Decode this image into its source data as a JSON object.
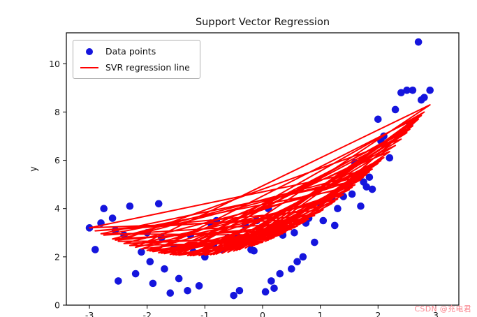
{
  "title": "Support Vector Regression",
  "watermark": {
    "text": "CSDN @充电君"
  },
  "colors": {
    "points": "#1515dd",
    "regression_line": "#ff0000",
    "axes": "#000000",
    "tick_text": "#1a1a1a",
    "watermark": "#fa7d87"
  },
  "chart_data": {
    "type": "scatter",
    "title": "Support Vector Regression",
    "xlabel": "",
    "ylabel": "y",
    "xlim": [
      -3.4,
      3.4
    ],
    "ylim": [
      0,
      11.28
    ],
    "x_ticks": [
      -3,
      -2,
      -1,
      0,
      1,
      2,
      3
    ],
    "y_ticks": [
      0,
      2,
      4,
      6,
      8,
      10
    ],
    "grid": false,
    "legend_position": "upper left",
    "x_tick_labels_partially_visible": true,
    "legend": [
      {
        "label": "Data points",
        "marker": "circle",
        "color": "#1515dd"
      },
      {
        "label": "SVR regression line",
        "marker": "line",
        "color": "#ff0000"
      }
    ],
    "points": [
      [
        0.1,
        4.0
      ],
      [
        -2.5,
        1.0
      ],
      [
        2.4,
        8.8
      ],
      [
        -0.9,
        3.4
      ],
      [
        1.5,
        5.0
      ],
      [
        -1.8,
        4.2
      ],
      [
        0.55,
        3.0
      ],
      [
        2.7,
        10.9
      ],
      [
        -0.5,
        0.4
      ],
      [
        1.9,
        4.8
      ],
      [
        -3.0,
        3.2
      ],
      [
        0.8,
        3.6
      ],
      [
        -1.3,
        0.6
      ],
      [
        2.0,
        7.7
      ],
      [
        -0.2,
        2.3
      ],
      [
        1.2,
        4.4
      ],
      [
        -2.2,
        1.3
      ],
      [
        2.9,
        8.9
      ],
      [
        -1.0,
        2.0
      ],
      [
        0.3,
        1.3
      ],
      [
        -2.8,
        3.4
      ],
      [
        1.7,
        4.1
      ],
      [
        -0.7,
        2.3
      ],
      [
        2.55,
        7.5
      ],
      [
        -1.6,
        0.5
      ],
      [
        0.9,
        2.6
      ],
      [
        -2.9,
        2.3
      ],
      [
        1.05,
        3.5
      ],
      [
        -0.1,
        3.5
      ],
      [
        2.2,
        6.1
      ],
      [
        -1.95,
        1.8
      ],
      [
        0.5,
        1.5
      ],
      [
        -2.6,
        3.6
      ],
      [
        1.85,
        5.3
      ],
      [
        -0.4,
        0.6
      ],
      [
        2.6,
        8.9
      ],
      [
        -1.45,
        1.1
      ],
      [
        0.0,
        2.9
      ],
      [
        -2.3,
        4.1
      ],
      [
        1.3,
        4.0
      ],
      [
        -0.85,
        2.5
      ],
      [
        2.3,
        8.1
      ],
      [
        -1.7,
        1.5
      ],
      [
        0.7,
        2.0
      ],
      [
        -2.75,
        4.0
      ],
      [
        1.55,
        4.6
      ],
      [
        -0.3,
        3.3
      ],
      [
        2.05,
        6.8
      ],
      [
        -1.25,
        2.9
      ],
      [
        0.2,
        0.7
      ],
      [
        -2.4,
        2.9
      ],
      [
        1.6,
        5.9
      ],
      [
        -0.6,
        2.8
      ],
      [
        2.75,
        8.5
      ],
      [
        -1.9,
        0.9
      ],
      [
        0.35,
        2.9
      ],
      [
        -2.1,
        2.2
      ],
      [
        1.75,
        5.1
      ],
      [
        -0.45,
        2.9
      ],
      [
        2.8,
        8.6
      ],
      [
        -1.55,
        2.3
      ],
      [
        0.15,
        1.0
      ],
      [
        -2.0,
        3.0
      ],
      [
        1.4,
        4.5
      ],
      [
        -0.15,
        2.25
      ],
      [
        2.1,
        7.0
      ],
      [
        -1.2,
        2.2
      ],
      [
        0.6,
        1.8
      ],
      [
        -2.55,
        3.1
      ],
      [
        1.8,
        4.9
      ],
      [
        -0.8,
        3.5
      ],
      [
        2.5,
        8.9
      ],
      [
        -1.5,
        2.4
      ],
      [
        0.4,
        3.2
      ],
      [
        -1.75,
        2.8
      ],
      [
        1.0,
        4.2
      ],
      [
        -1.1,
        0.8
      ],
      [
        0.75,
        3.4
      ],
      [
        0.05,
        0.55
      ],
      [
        1.25,
        3.3
      ]
    ],
    "svr_model": {
      "type": "quadratic",
      "coefficients_a_b_c": [
        0.367,
        0.9,
        2.6
      ],
      "drawn_in_unsorted_data_order": true
    }
  }
}
